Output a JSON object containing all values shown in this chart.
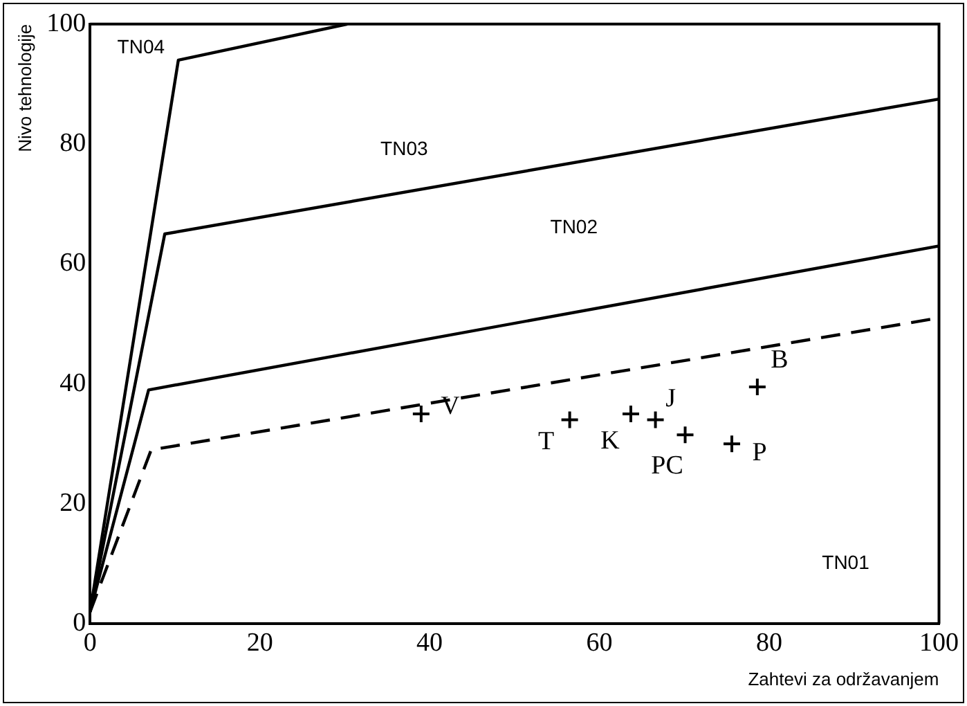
{
  "chart_data": {
    "type": "line",
    "xlabel": "Zahtevi za održavanjem",
    "ylabel": "Nivo tehnologije",
    "xlim": [
      0,
      100
    ],
    "ylim": [
      0,
      100
    ],
    "xticks": [
      0,
      20,
      40,
      60,
      80,
      100
    ],
    "yticks": [
      0,
      20,
      40,
      60,
      80,
      100
    ],
    "grid": false,
    "legend": false,
    "series": [
      {
        "type": "line",
        "color": "#000000",
        "line_style": "solid",
        "marker": "none",
        "x": [
          0,
          10.4,
          30.3
        ],
        "values": [
          2,
          94,
          100
        ]
      },
      {
        "type": "line",
        "color": "#000000",
        "line_style": "solid",
        "marker": "none",
        "x": [
          0,
          8.8,
          100
        ],
        "values": [
          2,
          65,
          87.5
        ]
      },
      {
        "type": "line",
        "color": "#000000",
        "line_style": "solid",
        "marker": "none",
        "x": [
          0,
          6.9,
          100
        ],
        "values": [
          2,
          39,
          63
        ]
      },
      {
        "type": "line",
        "color": "#000000",
        "line_style": "dashed",
        "marker": "none",
        "x": [
          0,
          7.2,
          100
        ],
        "values": [
          2,
          29,
          51
        ]
      },
      {
        "type": "scatter",
        "color": "#000000",
        "marker": "cross",
        "x": [
          39,
          56.5,
          63.7,
          66.6,
          70.1,
          75.6,
          78.6
        ],
        "values": [
          35,
          34,
          35,
          34,
          31.5,
          30,
          39.5
        ]
      }
    ],
    "annotations": [
      "TN04",
      "TN03",
      "TN02",
      "TN01",
      {
        "text": "V",
        "x": 39,
        "y": 35
      },
      {
        "text": "T",
        "x": 56.5,
        "y": 34
      },
      {
        "text": "K",
        "x": 63.7,
        "y": 35
      },
      {
        "text": "J",
        "x": 66.6,
        "y": 34
      },
      {
        "text": "PC",
        "x": 70.1,
        "y": 31.5
      },
      {
        "text": "P",
        "x": 75.6,
        "y": 30
      },
      {
        "text": "B",
        "x": 78.6,
        "y": 39.5
      }
    ]
  }
}
